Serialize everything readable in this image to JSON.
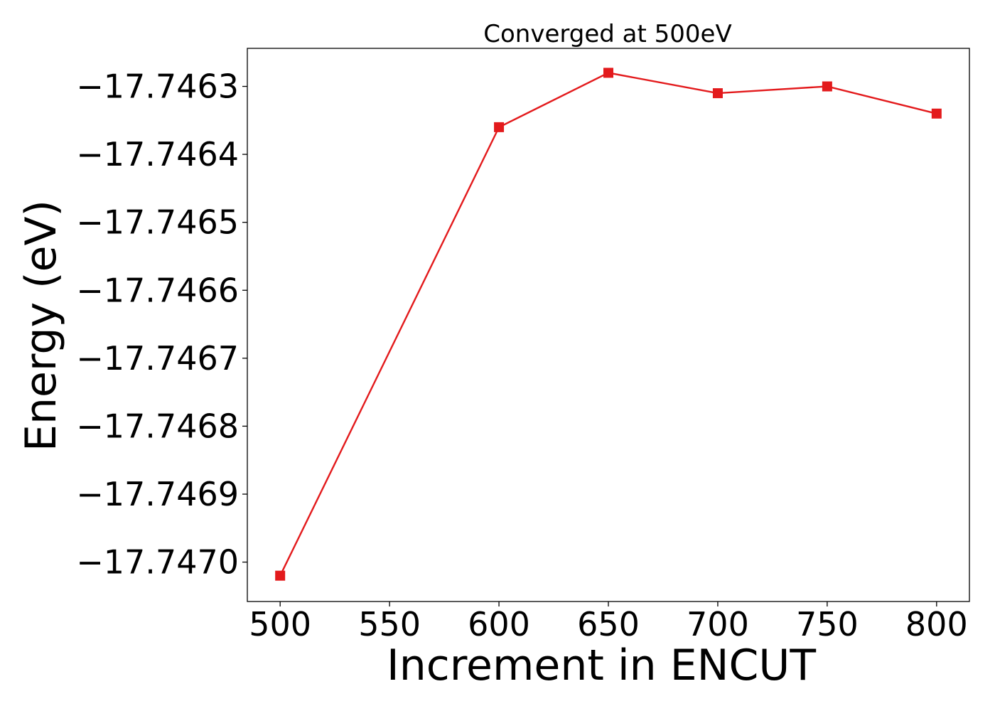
{
  "chart_data": {
    "type": "line",
    "title": "Converged at 500eV",
    "xlabel": "Increment in ENCUT",
    "ylabel": "Energy (eV)",
    "x": [
      500,
      600,
      650,
      700,
      750,
      800
    ],
    "series": [
      {
        "values": [
          -17.74702,
          -17.74636,
          -17.74628,
          -17.74631,
          -17.7463,
          -17.74634
        ],
        "color": "#e31a1c",
        "marker": "square"
      }
    ],
    "xticks": [
      500,
      550,
      600,
      650,
      700,
      750,
      800
    ],
    "xtick_labels": [
      "500",
      "550",
      "600",
      "650",
      "700",
      "750",
      "800"
    ],
    "yticks": [
      -17.7463,
      -17.7464,
      -17.7465,
      -17.7466,
      -17.7467,
      -17.7468,
      -17.7469,
      -17.747
    ],
    "ytick_labels": [
      "−17.7463",
      "−17.7464",
      "−17.7465",
      "−17.7466",
      "−17.7467",
      "−17.7468",
      "−17.7469",
      "−17.7470"
    ],
    "xlim": [
      485,
      815
    ],
    "ylim": [
      -17.747058,
      -17.746244
    ],
    "grid": false,
    "legend": "none"
  }
}
